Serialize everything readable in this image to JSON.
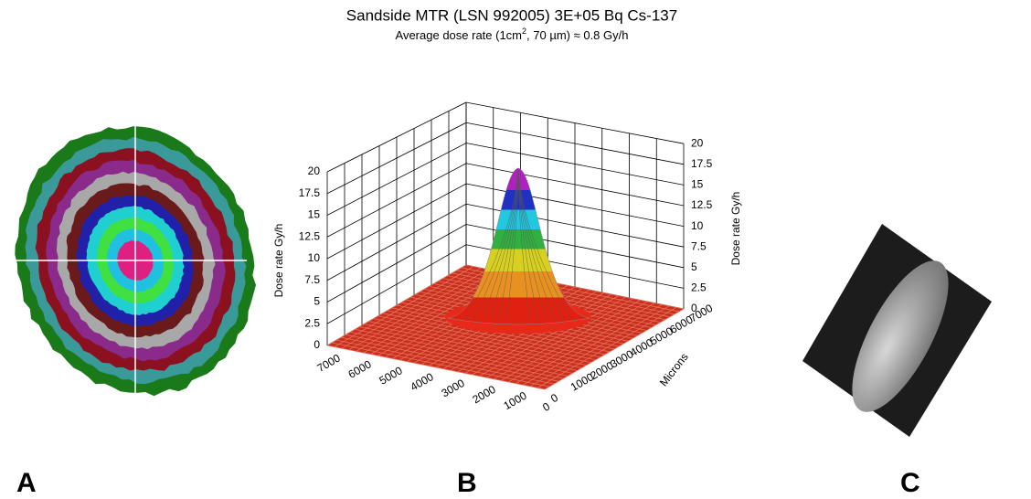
{
  "figure": {
    "title": "Sandside MTR (LSN 992005) 3E+05 Bq Cs-137",
    "subtitle": {
      "before": "Average dose rate (1cm",
      "superscript": "2",
      "after": ", 70  µm) ≈ 0.8 Gy/h"
    },
    "panels": [
      {
        "label": "A"
      },
      {
        "label": "B",
        "z_axis_label": "Dose rate Gy/h",
        "z_ticks": [
          "0",
          "2.5",
          "5",
          "7.5",
          "10",
          "12.5",
          "15",
          "17.5",
          "20"
        ],
        "x_ticks": [
          "7000",
          "6000",
          "5000",
          "4000",
          "3000",
          "2000",
          "1000",
          "0"
        ],
        "y_ticks": [
          "0",
          "1000",
          "2000",
          "3000",
          "4000",
          "5000",
          "6000",
          "7000"
        ],
        "y_axis_label": "Microns"
      },
      {
        "label": "C"
      }
    ]
  }
}
